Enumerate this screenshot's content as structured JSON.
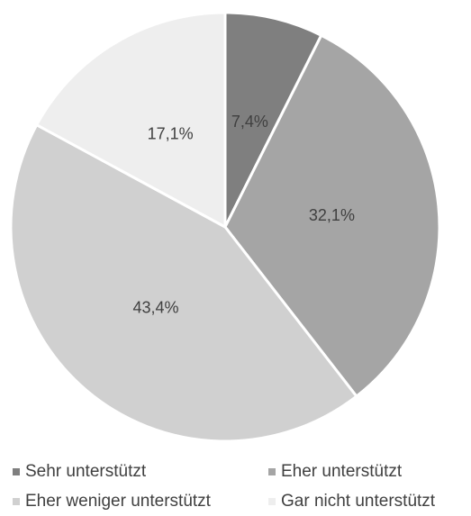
{
  "chart_data": {
    "type": "pie",
    "categories": [
      "Sehr unterstützt",
      "Eher unterstützt",
      "Eher weniger unterstützt",
      "Gar nicht unterstützt"
    ],
    "values": [
      7.4,
      32.1,
      43.4,
      17.1
    ],
    "value_labels": [
      "7,4%",
      "32,1%",
      "43,4%",
      "17,1%"
    ],
    "colors": [
      "#7f7f7f",
      "#a5a5a5",
      "#d0d0d0",
      "#eeeeee"
    ],
    "legend": "bottom"
  }
}
